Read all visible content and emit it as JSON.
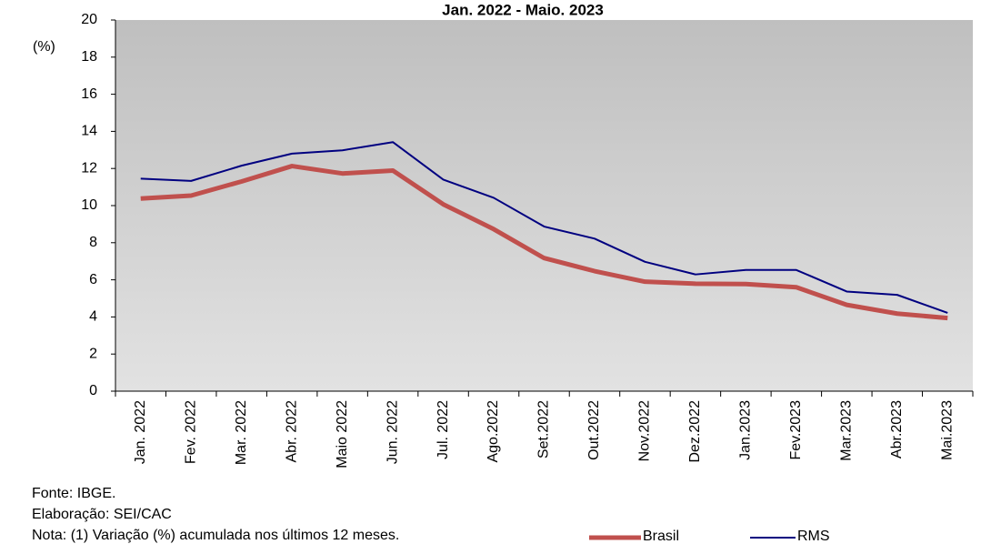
{
  "chart_data": {
    "type": "line",
    "title": "Jan. 2022 - Maio. 2023",
    "y_label": "(%)",
    "categories": [
      "Jan. 2022",
      "Fev. 2022",
      "Mar. 2022",
      "Abr. 2022",
      "Maio 2022",
      "Jun. 2022",
      "Jul. 2022",
      "Ago.2022",
      "Set.2022",
      "Out.2022",
      "Nov.2022",
      "Dez.2022",
      "Jan.2023",
      "Fev.2023",
      "Mar.2023",
      "Abr.2023",
      "Mai.2023"
    ],
    "series": [
      {
        "name": "Brasil",
        "color": "#c0504d",
        "values": [
          10.38,
          10.54,
          11.3,
          12.13,
          11.73,
          11.89,
          10.07,
          8.73,
          7.17,
          6.47,
          5.9,
          5.79,
          5.77,
          5.6,
          4.65,
          4.18,
          3.94
        ]
      },
      {
        "name": "RMS",
        "color": "#000080",
        "values": [
          11.45,
          11.33,
          12.15,
          12.8,
          12.98,
          13.42,
          11.4,
          10.42,
          8.87,
          8.22,
          6.97,
          6.29,
          6.53,
          6.53,
          5.37,
          5.19,
          4.22
        ]
      }
    ],
    "ylim": [
      0,
      20
    ],
    "yticks": [
      0,
      2,
      4,
      6,
      8,
      10,
      12,
      14,
      16,
      18,
      20
    ],
    "notes": [
      "Fonte: IBGE.",
      "Elaboração: SEI/CAC",
      "Nota: (1) Variação (%) acumulada nos últimos 12 meses."
    ]
  }
}
